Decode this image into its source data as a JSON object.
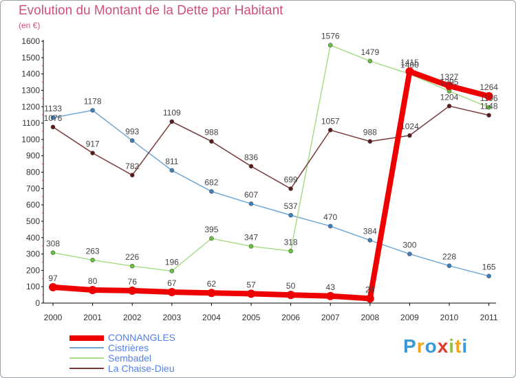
{
  "chart_data": {
    "type": "line",
    "title": "Evolution du Montant de la Dette par Habitant",
    "subtitle": "(en €)",
    "x": [
      "2000",
      "2001",
      "2002",
      "2003",
      "2004",
      "2005",
      "2006",
      "2007",
      "2008",
      "2009",
      "2010",
      "2011"
    ],
    "ylim": [
      0,
      1600
    ],
    "yticks": [
      0,
      100,
      200,
      300,
      400,
      500,
      600,
      700,
      800,
      900,
      1000,
      1100,
      1200,
      1300,
      1400,
      1500,
      1600
    ],
    "grid": false,
    "legend_position": "bottom-left",
    "series": [
      {
        "name": "CONNANGLES",
        "color": "#ee0000",
        "point_color": "#ee0000",
        "emphasis": true,
        "values": [
          97,
          80,
          76,
          67,
          62,
          57,
          50,
          43,
          28,
          1415,
          1327,
          1264
        ]
      },
      {
        "name": "Cistrières",
        "color": "#6ea8d8",
        "point_color": "#3a7fc0",
        "values": [
          1133,
          1178,
          993,
          811,
          682,
          607,
          537,
          470,
          384,
          300,
          228,
          165
        ]
      },
      {
        "name": "Sembadel",
        "color": "#a8dc86",
        "point_color": "#66c23c",
        "values": [
          308,
          263,
          226,
          196,
          395,
          347,
          318,
          1576,
          1479,
          1400,
          1295,
          1196
        ]
      },
      {
        "name": "La Chaise-Dieu",
        "color": "#7a3a3a",
        "point_color": "#5a1a1a",
        "values": [
          1076,
          917,
          782,
          1109,
          988,
          836,
          699,
          1057,
          988,
          1024,
          1204,
          1148
        ]
      }
    ]
  },
  "logo": {
    "letters": [
      "P",
      "r",
      "o",
      "x",
      "i",
      "t",
      "i"
    ],
    "colors": [
      "#3a9ad9",
      "#f2a21b",
      "#3a9ad9",
      "#e23b2e",
      "#8cc63f",
      "#f2a21b",
      "#3a9ad9"
    ]
  }
}
